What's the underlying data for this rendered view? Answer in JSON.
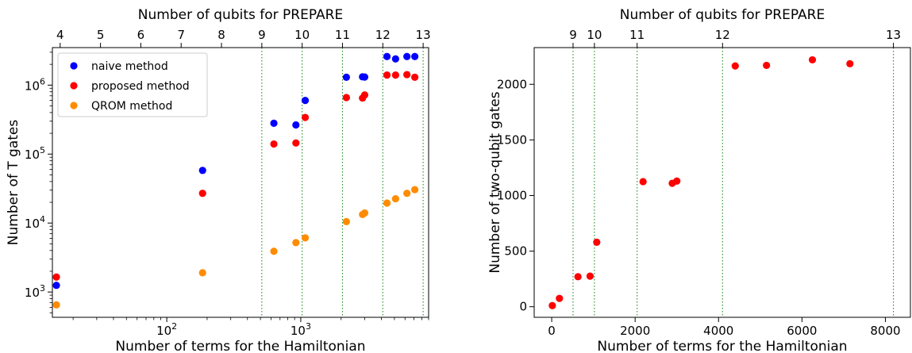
{
  "colors": {
    "naive": "#0000ff",
    "proposed": "#ff0000",
    "qrom": "#ff8c00",
    "vline": "#228b22"
  },
  "chart_data": [
    {
      "type": "scatter",
      "xscale": "log",
      "yscale": "log",
      "xlabel": "Number of terms for the Hamiltonian",
      "ylabel": "Number of T gates",
      "top_xlabel": "Number of qubits for PREPARE",
      "xlim": [
        14,
        9000
      ],
      "ylim": [
        430,
        3500000
      ],
      "x_ticks": [
        {
          "value": 100,
          "label": "10",
          "exp": "2"
        },
        {
          "value": 1000,
          "label": "10",
          "exp": "3"
        }
      ],
      "y_ticks": [
        {
          "value": 1000,
          "label": "10",
          "exp": "3"
        },
        {
          "value": 10000,
          "label": "10",
          "exp": "4"
        },
        {
          "value": 100000,
          "label": "10",
          "exp": "5"
        },
        {
          "value": 1000000,
          "label": "10",
          "exp": "6"
        }
      ],
      "top_ticks": [
        {
          "value": 16,
          "label": "4"
        },
        {
          "value": 32,
          "label": "5"
        },
        {
          "value": 64,
          "label": "6"
        },
        {
          "value": 128,
          "label": "7"
        },
        {
          "value": 256,
          "label": "8"
        },
        {
          "value": 512,
          "label": "9"
        },
        {
          "value": 1024,
          "label": "10"
        },
        {
          "value": 2048,
          "label": "11"
        },
        {
          "value": 4096,
          "label": "12"
        },
        {
          "value": 8192,
          "label": "13"
        }
      ],
      "vlines": [
        512,
        1024,
        2048,
        4096,
        8192
      ],
      "legend_position": "upper-left",
      "series": [
        {
          "name": "naive method",
          "color_key": "naive",
          "points": [
            [
              15,
              1250
            ],
            [
              185,
              58000
            ],
            [
              630,
              280000
            ],
            [
              920,
              265000
            ],
            [
              1080,
              600000
            ],
            [
              2190,
              1300000
            ],
            [
              2890,
              1320000
            ],
            [
              3000,
              1310000
            ],
            [
              4400,
              2600000
            ],
            [
              5100,
              2400000
            ],
            [
              6200,
              2600000
            ],
            [
              7100,
              2600000
            ]
          ]
        },
        {
          "name": "proposed method",
          "color_key": "proposed",
          "points": [
            [
              15,
              1650
            ],
            [
              185,
              27000
            ],
            [
              630,
              140000
            ],
            [
              920,
              145000
            ],
            [
              1080,
              340000
            ],
            [
              2190,
              660000
            ],
            [
              2890,
              650000
            ],
            [
              3000,
              720000
            ],
            [
              4400,
              1400000
            ],
            [
              5100,
              1400000
            ],
            [
              6200,
              1420000
            ],
            [
              7100,
              1300000
            ]
          ]
        },
        {
          "name": "QROM method",
          "color_key": "qrom",
          "points": [
            [
              15,
              650
            ],
            [
              185,
              1900
            ],
            [
              630,
              3900
            ],
            [
              920,
              5200
            ],
            [
              1080,
              6100
            ],
            [
              2190,
              10500
            ],
            [
              2890,
              13300
            ],
            [
              3000,
              14000
            ],
            [
              4400,
              19500
            ],
            [
              5100,
              22500
            ],
            [
              6200,
              27000
            ],
            [
              7100,
              30500
            ]
          ]
        }
      ]
    },
    {
      "type": "scatter",
      "xscale": "linear",
      "yscale": "linear",
      "xlabel": "Number of terms for the Hamiltonian",
      "ylabel": "Number of two-qubit gates",
      "top_xlabel": "Number of qubits for PREPARE",
      "xlim": [
        -420,
        8600
      ],
      "ylim": [
        -95,
        2330
      ],
      "x_ticks": [
        {
          "value": 0,
          "label": "0"
        },
        {
          "value": 2000,
          "label": "2000"
        },
        {
          "value": 4000,
          "label": "4000"
        },
        {
          "value": 6000,
          "label": "6000"
        },
        {
          "value": 8000,
          "label": "8000"
        }
      ],
      "y_ticks": [
        {
          "value": 0,
          "label": "0"
        },
        {
          "value": 500,
          "label": "500"
        },
        {
          "value": 1000,
          "label": "1000"
        },
        {
          "value": 1500,
          "label": "1500"
        },
        {
          "value": 2000,
          "label": "2000"
        }
      ],
      "top_ticks": [
        {
          "value": 512,
          "label": "9"
        },
        {
          "value": 1024,
          "label": "10"
        },
        {
          "value": 2048,
          "label": "11"
        },
        {
          "value": 4096,
          "label": "12"
        },
        {
          "value": 8192,
          "label": "13"
        }
      ],
      "vlines": [
        512,
        1024,
        2048,
        4096,
        8192
      ],
      "series": [
        {
          "color_key": "proposed",
          "points": [
            [
              15,
              10
            ],
            [
              185,
              75
            ],
            [
              630,
              270
            ],
            [
              920,
              275
            ],
            [
              1080,
              580
            ],
            [
              2190,
              1125
            ],
            [
              2890,
              1110
            ],
            [
              3000,
              1130
            ],
            [
              4400,
              2165
            ],
            [
              5150,
              2170
            ],
            [
              6250,
              2220
            ],
            [
              7150,
              2185
            ]
          ]
        }
      ]
    }
  ]
}
